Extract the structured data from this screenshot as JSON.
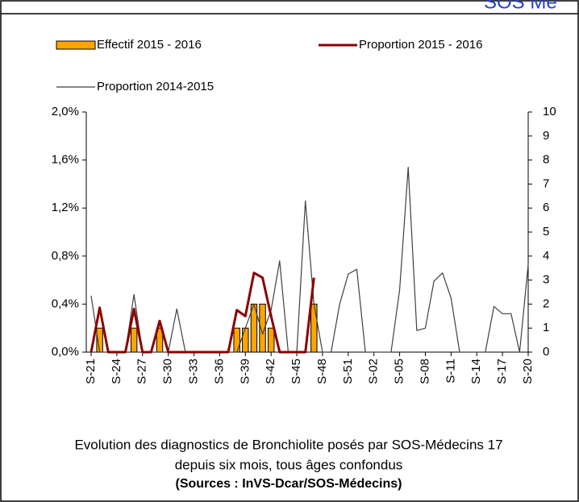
{
  "header": {
    "text": "SOS Mé"
  },
  "chart_data": {
    "type": "bar",
    "title": [
      "Evolution des diagnostics de Bronchiolite posés par SOS-Médecins 17",
      "depuis six mois, tous âges confondus"
    ],
    "source": "(Sources : InVS-Dcar/SOS-Médecins)",
    "categories": [
      "S-21",
      null,
      null,
      "S-24",
      null,
      null,
      "S-27",
      null,
      null,
      "S-30",
      null,
      null,
      "S-33",
      null,
      null,
      "S-36",
      null,
      null,
      "S-39",
      null,
      null,
      "S-42",
      null,
      null,
      "S-45",
      null,
      null,
      "S-48",
      null,
      null,
      "S-51",
      null,
      null,
      "S-02",
      null,
      null,
      "S-05",
      null,
      null,
      "S-08",
      null,
      null,
      "S-11",
      null,
      null,
      "S-14",
      null,
      null,
      "S-17",
      null,
      null,
      "S-20"
    ],
    "series": [
      {
        "name": "Effectif 2015 - 2016",
        "type": "bar",
        "axis": "y2",
        "color": "#ffa500",
        "values": [
          0,
          1,
          0,
          0,
          0,
          1,
          0,
          0,
          1,
          0,
          0,
          0,
          0,
          0,
          0,
          0,
          0,
          1,
          1,
          2,
          2,
          1,
          0,
          0,
          0,
          0,
          2,
          null,
          null,
          null,
          null,
          null,
          null,
          null,
          null,
          null,
          null,
          null,
          null,
          null,
          null,
          null,
          null,
          null,
          null,
          null,
          null,
          null,
          null,
          null,
          null,
          null
        ]
      },
      {
        "name": "Proportion 2015 - 2016",
        "type": "line",
        "color": "#8b0000",
        "values": [
          0,
          0.37,
          0,
          0,
          0,
          0.36,
          0,
          0,
          0.26,
          0,
          0,
          0,
          0,
          0,
          0,
          0,
          0,
          0.35,
          0.3,
          0.66,
          0.62,
          0.3,
          0,
          0,
          0,
          0,
          0.62,
          null,
          null,
          null,
          null,
          null,
          null,
          null,
          null,
          null,
          null,
          null,
          null,
          null,
          null,
          null,
          null,
          null,
          null,
          null,
          null,
          null,
          null,
          null,
          null,
          null
        ]
      },
      {
        "name": "Proportion 2014-2015",
        "type": "line",
        "color": "#404040",
        "values": [
          0.47,
          0,
          0,
          0,
          0,
          0.48,
          0,
          0,
          0,
          0,
          0.36,
          0,
          0,
          0,
          0,
          0,
          0,
          0,
          0.2,
          0.4,
          0.15,
          0.35,
          0.76,
          0,
          0,
          1.26,
          0.4,
          0,
          0,
          0.4,
          0.65,
          0.69,
          0,
          0,
          0,
          0,
          0.52,
          1.54,
          0.18,
          0.2,
          0.59,
          0.66,
          0.45,
          0,
          0,
          0,
          0,
          0.38,
          0.32,
          0.32,
          0,
          0.73
        ]
      }
    ],
    "ylim": [
      0,
      2
    ],
    "yticks": [
      {
        "value": 0,
        "label": "0,0%"
      },
      {
        "value": 0.4,
        "label": "0,4%"
      },
      {
        "value": 0.8,
        "label": "0,8%"
      },
      {
        "value": 1.2,
        "label": "1,2%"
      },
      {
        "value": 1.6,
        "label": "1,6%"
      },
      {
        "value": 2,
        "label": "2,0%"
      }
    ],
    "y2lim": [
      0,
      10
    ],
    "y2ticks": [
      0,
      1,
      2,
      3,
      4,
      5,
      6,
      7,
      8,
      9,
      10
    ],
    "grid": false
  }
}
